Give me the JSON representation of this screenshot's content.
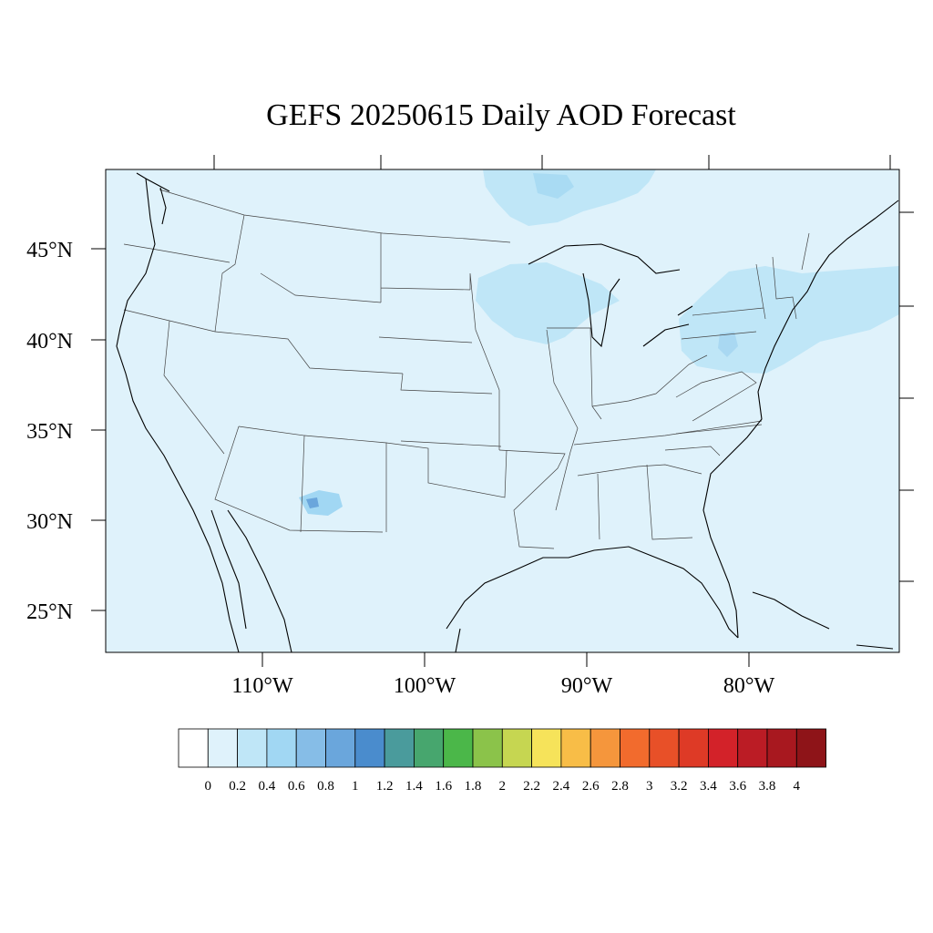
{
  "title": "GEFS 20250615 Daily AOD Forecast",
  "colors": {
    "background_field": "#dff2fb",
    "level_02_04": "#bfe6f7",
    "level_04_06": "#a1d7f3",
    "level_06_08": "#86bde7",
    "level_08_10": "#6aa6dc",
    "level_10_12": "#4a8ccd"
  },
  "latitude_labels": [
    "45°N",
    "40°N",
    "35°N",
    "30°N",
    "25°N"
  ],
  "longitude_labels": [
    "110°W",
    "100°W",
    "90°W",
    "80°W"
  ],
  "colorbar": {
    "labels": [
      "0",
      "0.2",
      "0.4",
      "0.6",
      "0.8",
      "1",
      "1.2",
      "1.4",
      "1.6",
      "1.8",
      "2",
      "2.2",
      "2.4",
      "2.6",
      "2.8",
      "3",
      "3.2",
      "3.4",
      "3.6",
      "3.8",
      "4"
    ],
    "colors": [
      "#ffffff",
      "#dff2fb",
      "#bfe6f7",
      "#a1d7f3",
      "#86bde7",
      "#6aa6dc",
      "#4a8ccd",
      "#4a9b9c",
      "#47a66e",
      "#4bb749",
      "#8bc34a",
      "#c6d651",
      "#f6e35a",
      "#f8bd47",
      "#f5963c",
      "#f26b2d",
      "#e85028",
      "#de3a26",
      "#d32229",
      "#bb1c25",
      "#a8181f",
      "#8e1418"
    ]
  }
}
